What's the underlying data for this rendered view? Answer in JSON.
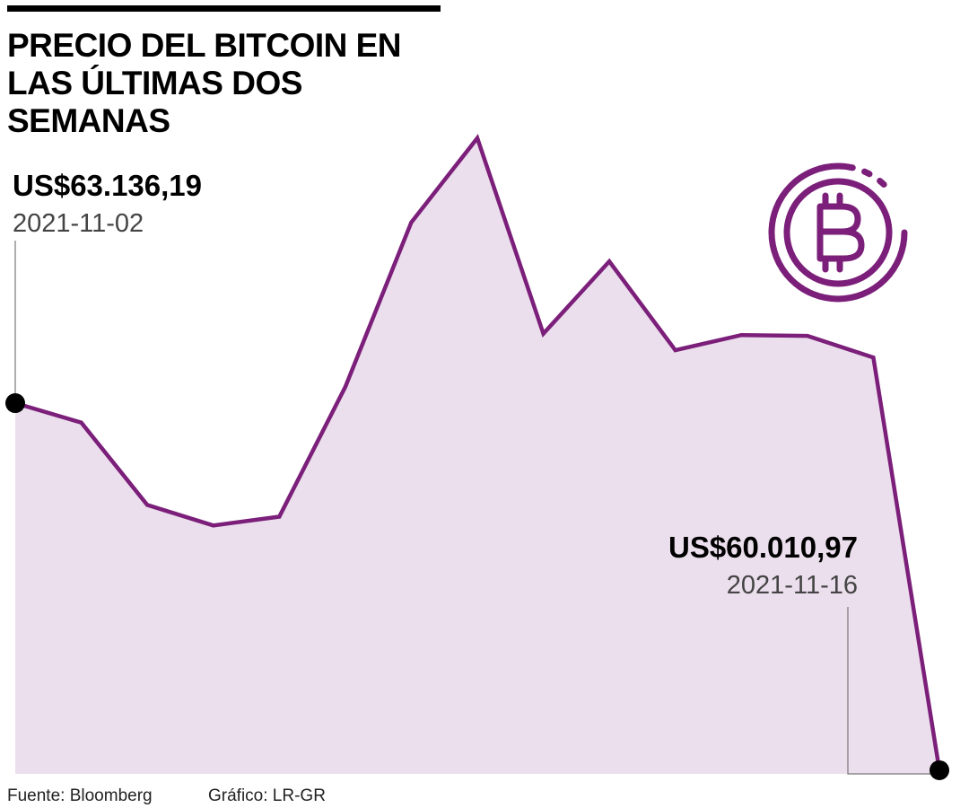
{
  "title": "PRECIO DEL BITCOIN EN LAS ÚLTIMAS DOS SEMANAS",
  "source": "Fuente: Bloomberg",
  "credit": "Gráfico: LR-GR",
  "colors": {
    "line": "#7b1f7a",
    "area": "#ecdfed",
    "marker": "#000000",
    "icon": "#7b1f7a"
  },
  "icon": "bitcoin-icon",
  "annotations": {
    "start": {
      "value": "US$63.136,19",
      "date": "2021-11-02"
    },
    "end": {
      "value": "US$60.010,97",
      "date": "2021-11-16"
    }
  },
  "chart_data": {
    "type": "area",
    "title": "PRECIO DEL BITCOIN EN LAS ÚLTIMAS DOS SEMANAS",
    "x": [
      "2021-11-02",
      "2021-11-03",
      "2021-11-04",
      "2021-11-05",
      "2021-11-06",
      "2021-11-07",
      "2021-11-08",
      "2021-11-09",
      "2021-11-10",
      "2021-11-11",
      "2021-11-12",
      "2021-11-13",
      "2021-11-14",
      "2021-11-15",
      "2021-11-16"
    ],
    "values": [
      63136.19,
      62971,
      62270,
      62095,
      62170,
      63275,
      64675,
      65393,
      63727,
      64343,
      63587,
      63716,
      63709,
      63525,
      60010.97
    ],
    "ylim": [
      59980,
      65460
    ],
    "grid": false,
    "legend": "none",
    "xlabel": "",
    "ylabel": ""
  }
}
